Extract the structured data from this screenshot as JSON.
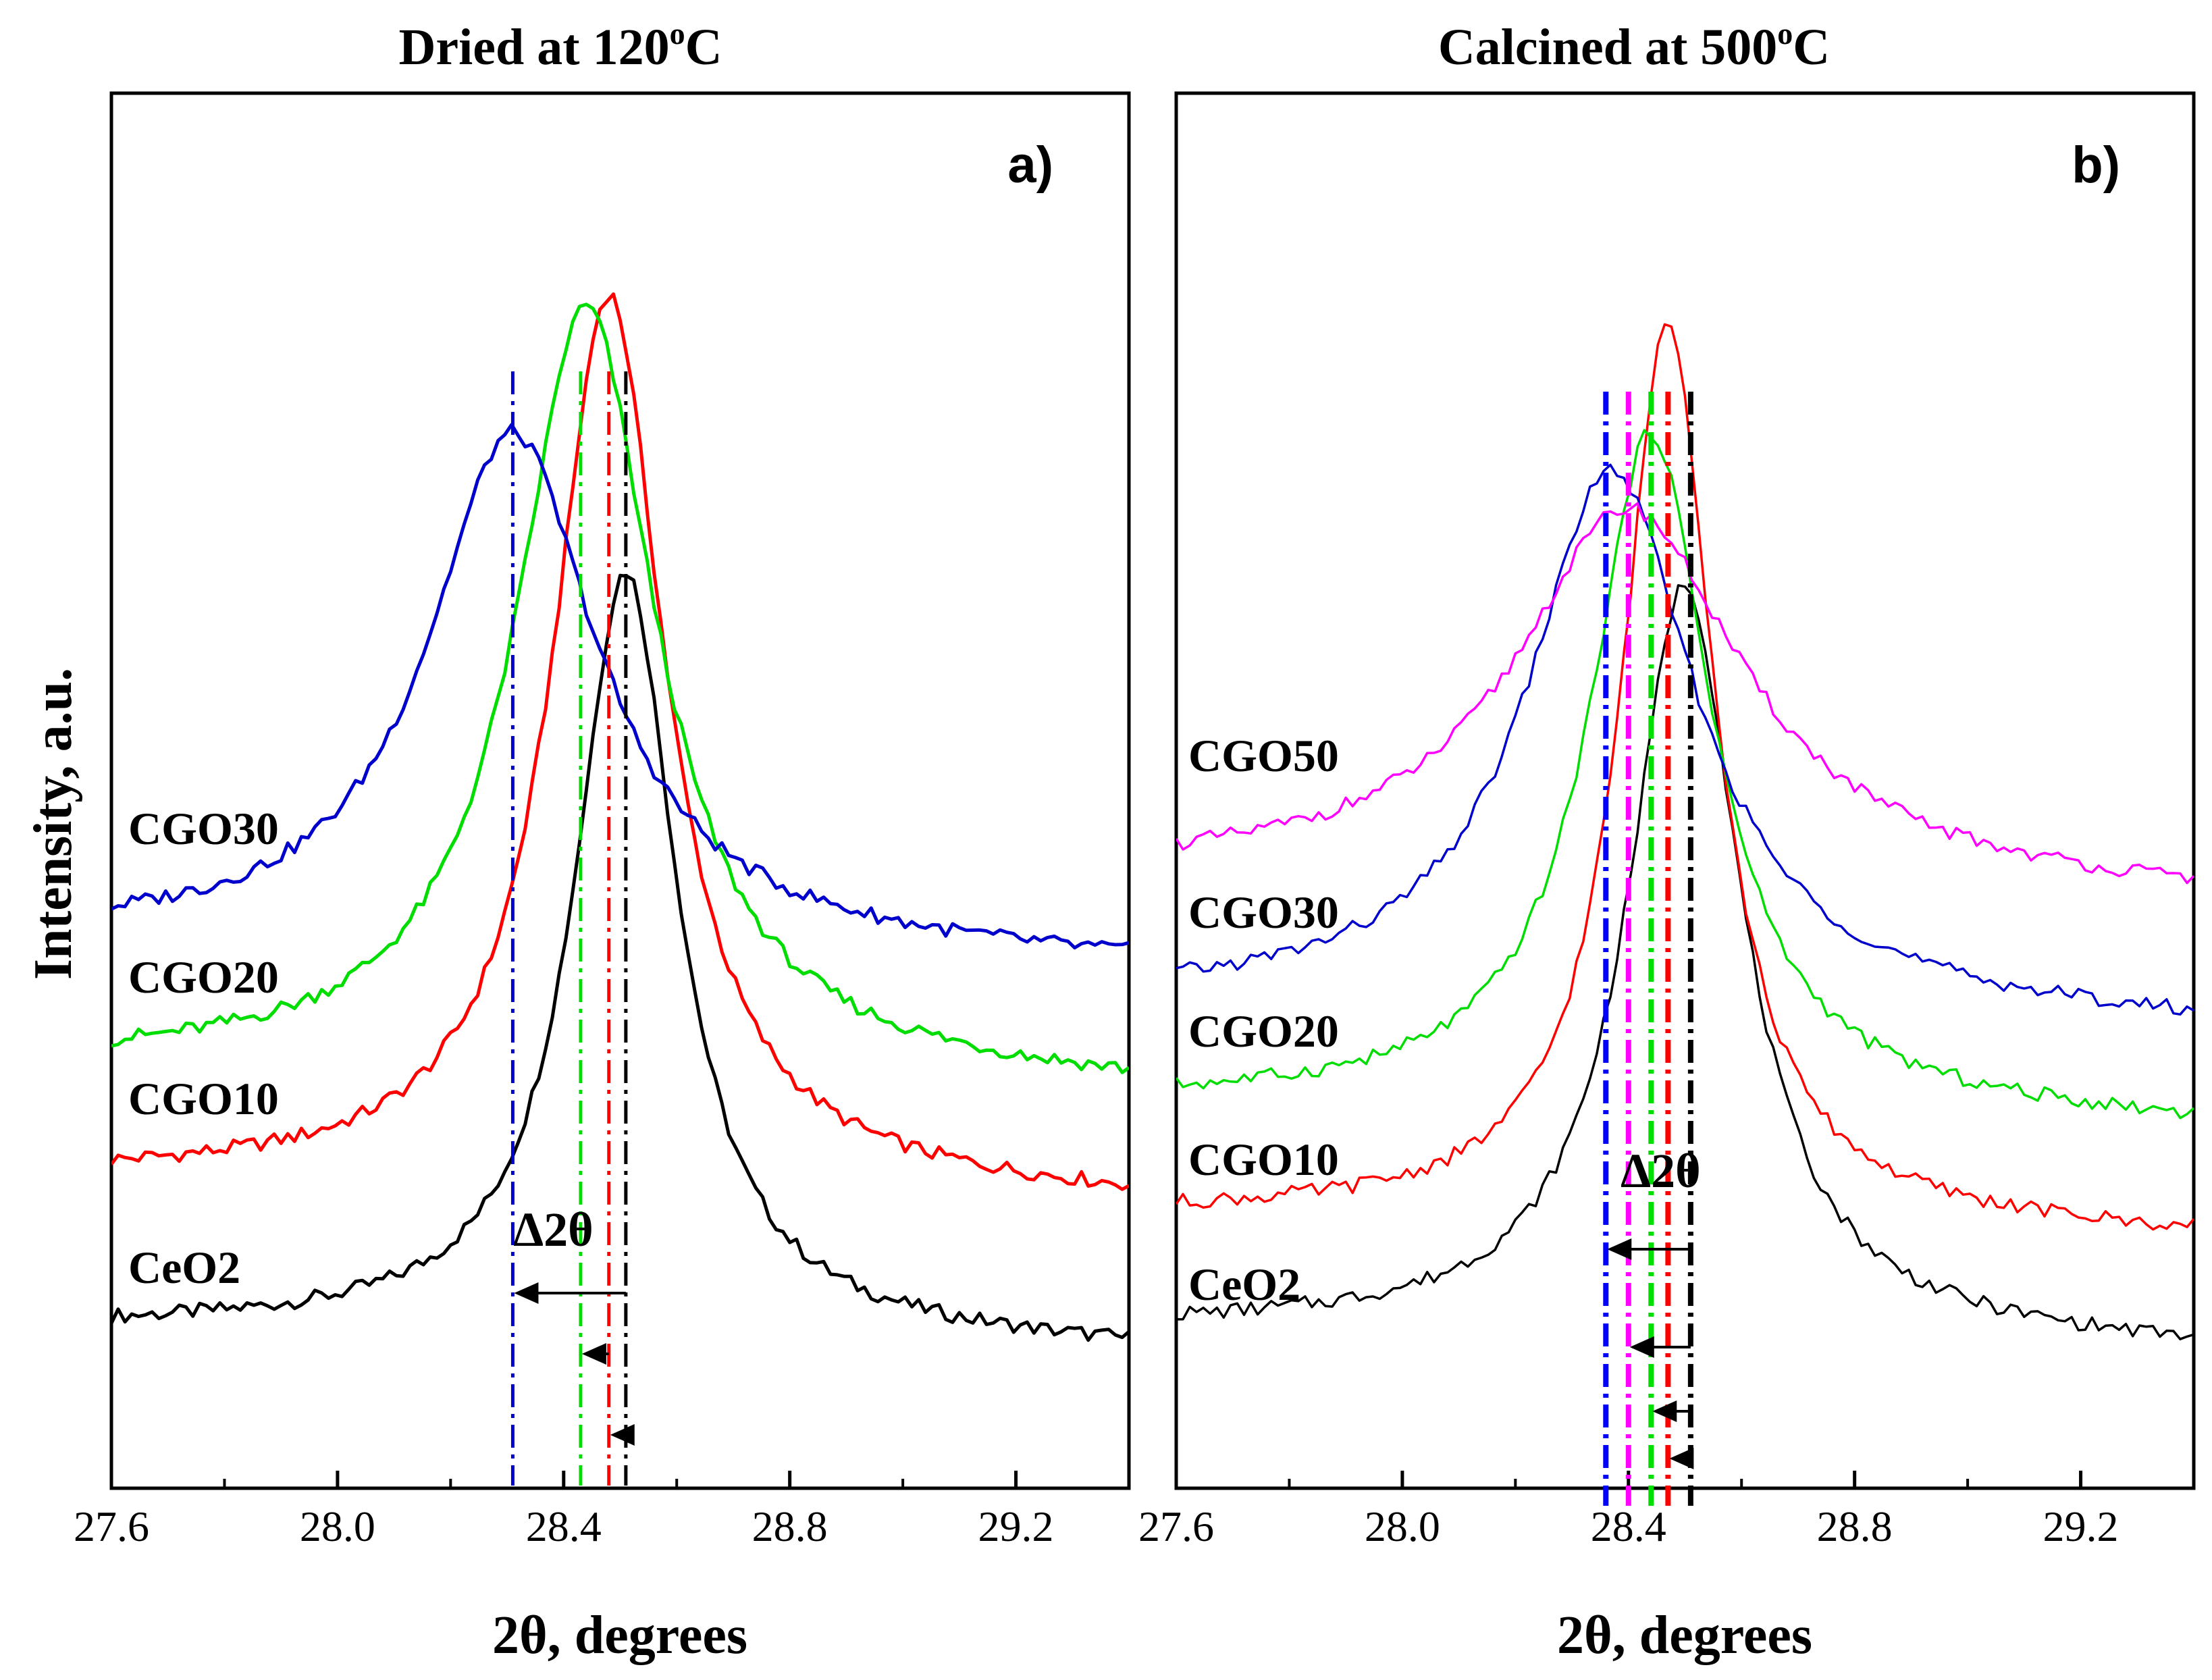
{
  "chart_data": [
    {
      "type": "line",
      "panel": "a",
      "panel_label": "a",
      "title": "Dried at 120",
      "title_sup": "o",
      "title_unit": "C",
      "xlabel": "2θ, degrees",
      "ylabel": "Intensity, a.u.",
      "xlim": [
        27.6,
        29.4
      ],
      "xticks": [
        "27.6",
        "28.0",
        "28.4",
        "28.8",
        "29.2"
      ],
      "delta_label": "Δ2θ",
      "series": [
        {
          "name": "CeO2",
          "color": "#000000",
          "peak_2theta": 28.51,
          "fwhm": 0.22,
          "baseline": 0.08,
          "height": 0.6
        },
        {
          "name": "CGO10",
          "color": "#ff0000",
          "peak_2theta": 28.48,
          "fwhm": 0.24,
          "baseline": 0.2,
          "height": 0.7
        },
        {
          "name": "CGO20",
          "color": "#00dd00",
          "peak_2theta": 28.44,
          "fwhm": 0.3,
          "baseline": 0.29,
          "height": 0.6
        },
        {
          "name": "CGO30",
          "color": "#0000cc",
          "peak_2theta": 28.31,
          "fwhm": 0.36,
          "baseline": 0.39,
          "height": 0.4
        }
      ],
      "marker_lines": [
        {
          "series": "CeO2",
          "x": 28.51,
          "color": "#000000"
        },
        {
          "series": "CGO10",
          "x": 28.48,
          "color": "#ff0000"
        },
        {
          "series": "CGO20",
          "x": 28.43,
          "color": "#00dd00"
        },
        {
          "series": "CGO30",
          "x": 28.31,
          "color": "#0000cc"
        }
      ]
    },
    {
      "type": "line",
      "panel": "b",
      "panel_label": "b",
      "title": "Calcined at 500",
      "title_sup": "o",
      "title_unit": "C",
      "xlabel": "2θ, degrees",
      "ylabel": "",
      "xlim": [
        27.6,
        29.4
      ],
      "xticks": [
        "27.6",
        "28.0",
        "28.4",
        "28.8",
        "29.2"
      ],
      "delta_label": "Δ2θ",
      "series": [
        {
          "name": "CeO2",
          "color": "#000000",
          "peak_2theta": 28.5,
          "fwhm": 0.24,
          "baseline": 0.08,
          "height": 0.59
        },
        {
          "name": "CGO10",
          "color": "#ff0000",
          "peak_2theta": 28.47,
          "fwhm": 0.2,
          "baseline": 0.17,
          "height": 0.71
        },
        {
          "name": "CGO20",
          "color": "#00dd00",
          "peak_2theta": 28.44,
          "fwhm": 0.26,
          "baseline": 0.26,
          "height": 0.53
        },
        {
          "name": "CGO30",
          "color": "#0000cc",
          "peak_2theta": 28.37,
          "fwhm": 0.36,
          "baseline": 0.34,
          "height": 0.42
        },
        {
          "name": "CGO50",
          "color": "#ff00ff",
          "peak_2theta": 28.4,
          "fwhm": 0.48,
          "baseline": 0.44,
          "height": 0.29
        }
      ],
      "marker_lines": [
        {
          "series": "CeO2",
          "x": 28.51,
          "color": "#000000"
        },
        {
          "series": "CGO10",
          "x": 28.47,
          "color": "#ff0000"
        },
        {
          "series": "CGO20",
          "x": 28.44,
          "color": "#00dd00"
        },
        {
          "series": "CGO30",
          "x": 28.36,
          "color": "#0000ff"
        },
        {
          "series": "CGO50",
          "x": 28.4,
          "color": "#ff00ff"
        }
      ]
    }
  ]
}
